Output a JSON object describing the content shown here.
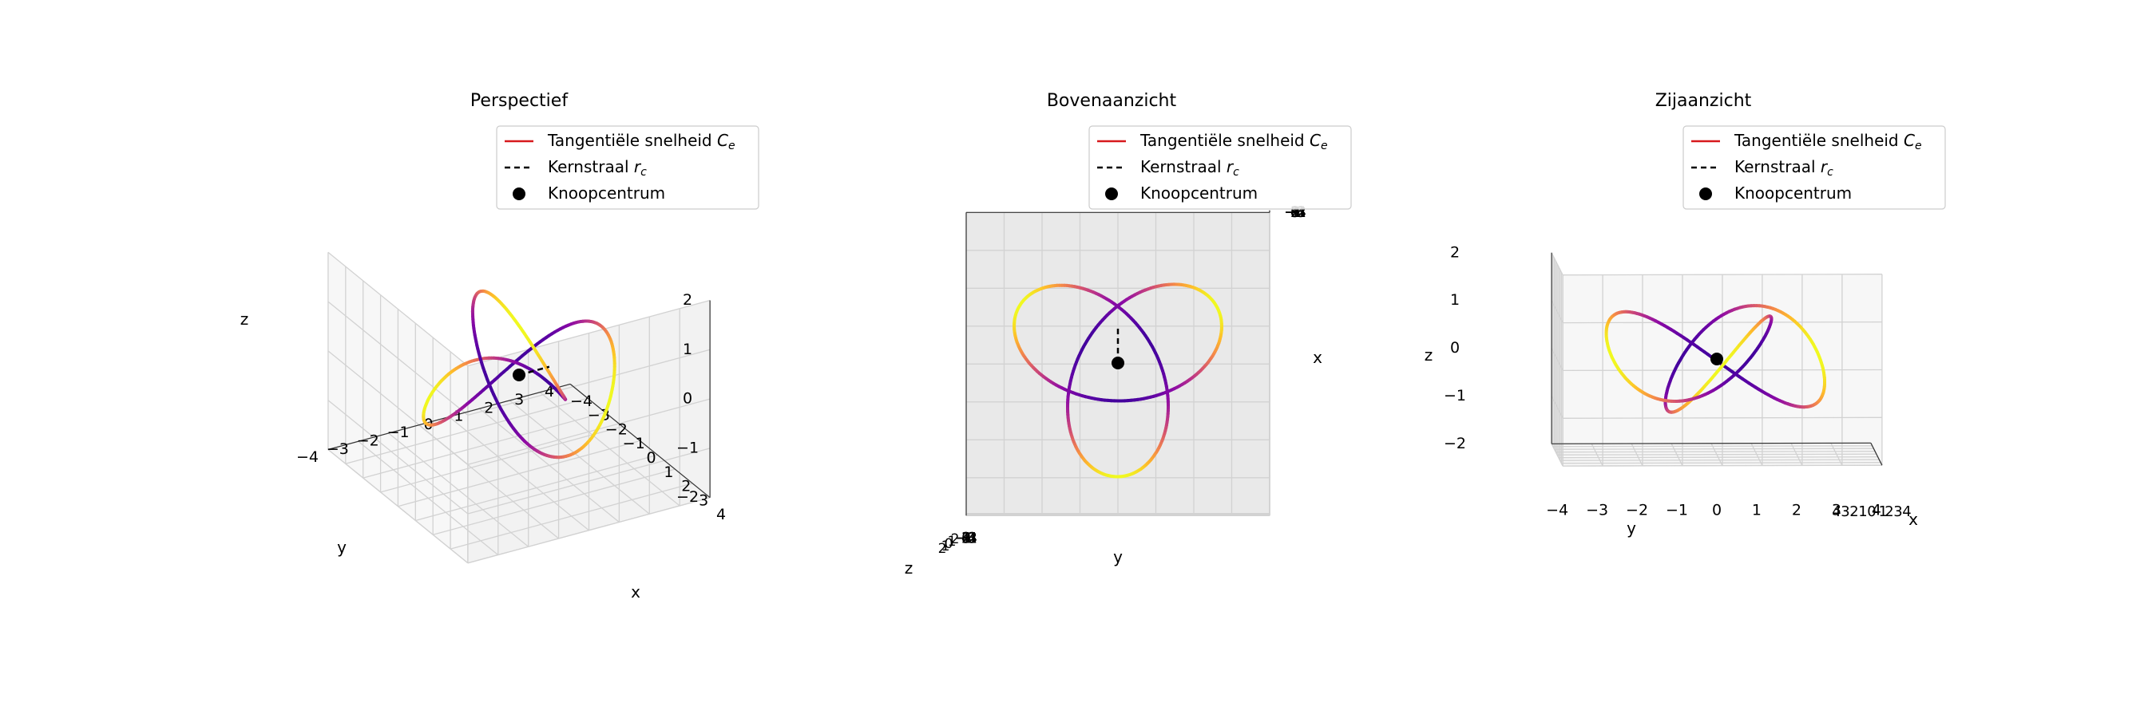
{
  "chart_data": [
    {
      "type": "line",
      "projection": "3d-perspective",
      "title": "Perspectief",
      "xlabel": "x",
      "ylabel": "y",
      "zlabel": "z",
      "xlim": [
        -4,
        4
      ],
      "ylim": [
        -4,
        4
      ],
      "zlim": [
        -2,
        2
      ],
      "xticks": [
        -4,
        -3,
        -2,
        -1,
        0,
        1,
        2,
        3,
        4
      ],
      "yticks": [
        -4,
        -3,
        -2,
        -1,
        0,
        1,
        2,
        3,
        4
      ],
      "zticks": [
        -2,
        -1,
        0,
        1,
        2
      ],
      "grid": true,
      "legend_position": "top-right"
    },
    {
      "type": "line",
      "projection": "3d-top-view",
      "title": "Bovenaanzicht",
      "xlabel": "y",
      "ylabel": "x",
      "zlabel": "z",
      "xlim": [
        -4,
        4
      ],
      "ylim": [
        -4,
        4
      ],
      "xticks": [
        4,
        3,
        2,
        1,
        0,
        -1,
        -2,
        -3,
        -4
      ],
      "yticks": [
        4,
        3,
        2,
        1,
        0,
        -1,
        -2,
        -3,
        -4
      ],
      "zticks_compressed": [
        "2",
        "1",
        "0",
        "1",
        "2"
      ],
      "grid": true,
      "legend_position": "top-right"
    },
    {
      "type": "line",
      "projection": "3d-side-view",
      "title": "Zijaanzicht",
      "xlabel": "y",
      "ylabel": "x",
      "zlabel": "z",
      "xlim": [
        -4,
        4
      ],
      "zlim": [
        -2,
        2
      ],
      "yticks": [
        -4,
        -3,
        -2,
        -1,
        0,
        1,
        2,
        3,
        4
      ],
      "zticks": [
        -2,
        -1,
        0,
        1,
        2
      ],
      "xticks_compressed": [
        "4",
        "3",
        "2",
        "1",
        "0",
        "-1",
        "2",
        "3",
        "4"
      ],
      "grid": true,
      "legend_position": "top-right"
    }
  ],
  "curve": {
    "description": "trefoil knot",
    "x": "sin(t) + 2 sin(2t)",
    "y": "cos(t) - 2 cos(2t)",
    "z": "-sin(3t)",
    "colormap": "plasma",
    "center": [
      0,
      0,
      0
    ],
    "core_radius_end": [
      0,
      1,
      0
    ]
  },
  "legend": [
    {
      "label_text": "Tangentiële snelheid ",
      "label_math": "C",
      "label_sub": "e",
      "style": "solid",
      "color": "#d7191c"
    },
    {
      "label_text": "Kernstraal ",
      "label_math": "r",
      "label_sub": "c",
      "style": "dashed",
      "color": "#000000"
    },
    {
      "label_text": "Knoopcentrum",
      "label_math": "",
      "label_sub": "",
      "style": "marker",
      "color": "#000000"
    }
  ]
}
